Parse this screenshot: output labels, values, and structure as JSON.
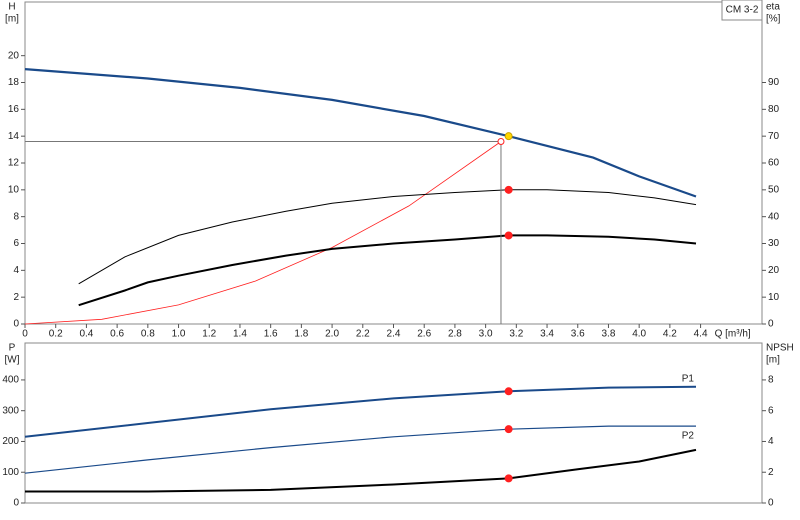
{
  "chart_data": [
    {
      "type": "line",
      "title": "CM 3-2",
      "ylabel": [
        "H",
        "[m]"
      ],
      "y2label": [
        "eta",
        "[%]"
      ],
      "xlabel": "Q [m³/h]",
      "xlim": [
        0,
        4.8
      ],
      "xticks": [
        0,
        0.2,
        0.4,
        0.6,
        0.8,
        {
          "value": 1,
          "label": "1.0"
        },
        1.2,
        1.4,
        1.6,
        1.8,
        {
          "value": 2,
          "label": "2.0"
        },
        2.2,
        2.4,
        2.6,
        2.8,
        {
          "value": 3,
          "label": "3.0"
        },
        3.2,
        3.4,
        3.6,
        3.8,
        {
          "value": 4,
          "label": "4.0"
        },
        4.2,
        4.4
      ],
      "ylim": [
        0,
        24
      ],
      "yticks": [
        0,
        2,
        4,
        6,
        8,
        10,
        12,
        14,
        16,
        18,
        20
      ],
      "y2lim": [
        0,
        120
      ],
      "y2ticks": [
        0,
        10,
        20,
        30,
        40,
        50,
        60,
        70,
        80,
        90
      ],
      "series": [
        {
          "color": "#1a4a8a",
          "width": 2.2,
          "x": [
            0,
            0.8,
            1.4,
            2.0,
            2.6,
            3.15,
            3.7,
            4.0,
            4.37
          ],
          "values": [
            19.0,
            18.3,
            17.6,
            16.7,
            15.5,
            14.0,
            12.4,
            11.0,
            9.5
          ]
        },
        {
          "color": "#ff2020",
          "width": 0.8,
          "x": [
            0,
            0.5,
            1.0,
            1.5,
            2.0,
            2.5,
            3.1
          ],
          "values": [
            0,
            0.35,
            1.42,
            3.2,
            5.7,
            8.8,
            13.6
          ]
        },
        {
          "color": "#000000",
          "width": 1,
          "axis": "y2",
          "x": [
            0.35,
            0.65,
            1.0,
            1.35,
            1.7,
            2.0,
            2.4,
            2.8,
            3.15,
            3.4,
            3.8,
            4.1,
            4.37
          ],
          "values": [
            15,
            25,
            33,
            38,
            42,
            45,
            47.5,
            49,
            50,
            50,
            49,
            47,
            44.5
          ]
        },
        {
          "color": "#000000",
          "width": 2,
          "axis": "y2",
          "x": [
            0.35,
            0.65,
            0.8,
            1.0,
            1.35,
            1.7,
            2.0,
            2.4,
            2.8,
            3.15,
            3.4,
            3.8,
            4.1,
            4.37
          ],
          "values": [
            7,
            12.5,
            15.5,
            18,
            22,
            25.5,
            28,
            30,
            31.5,
            33,
            33,
            32.5,
            31.5,
            30
          ]
        }
      ],
      "markers": [
        {
          "x": 3.1,
          "y": 13.6,
          "color": "#ff2020",
          "open": true,
          "guides": true
        },
        {
          "x": 3.15,
          "y": 14.0,
          "color": "#ffd700"
        },
        {
          "x": 3.15,
          "y": 50,
          "color": "#ff2020",
          "axis": "y2"
        },
        {
          "x": 3.15,
          "y": 33,
          "color": "#ff2020",
          "axis": "y2"
        }
      ]
    },
    {
      "type": "line",
      "ylabel": [
        "P",
        "[W]"
      ],
      "y2label": [
        "NPSH",
        "[m]"
      ],
      "xlim": [
        0,
        4.8
      ],
      "ylim": [
        0,
        520
      ],
      "yticks": [
        0,
        100,
        200,
        300,
        400
      ],
      "y2lim": [
        0,
        10.4
      ],
      "y2ticks": [
        0,
        2,
        4,
        6,
        8
      ],
      "series": [
        {
          "name": "P1",
          "label_position": "above",
          "color": "#1a4a8a",
          "width": 2,
          "x": [
            0,
            0.8,
            1.6,
            2.4,
            3.15,
            3.8,
            4.37
          ],
          "values": [
            215,
            260,
            305,
            340,
            363,
            375,
            378
          ]
        },
        {
          "name": "P2",
          "label_position": "below",
          "color": "#1a4a8a",
          "width": 1.2,
          "x": [
            0,
            0.8,
            1.6,
            2.4,
            3.15,
            3.8,
            4.37
          ],
          "values": [
            97,
            140,
            180,
            215,
            240,
            250,
            250
          ]
        },
        {
          "color": "#000000",
          "width": 2,
          "axis": "y2",
          "x": [
            0,
            0.8,
            1.6,
            2.4,
            3.15,
            3.6,
            4.0,
            4.37
          ],
          "values": [
            0.75,
            0.75,
            0.85,
            1.2,
            1.6,
            2.2,
            2.7,
            3.45
          ]
        }
      ],
      "markers": [
        {
          "x": 3.15,
          "y": 363,
          "color": "#ff2020"
        },
        {
          "x": 3.15,
          "y": 240,
          "color": "#ff2020"
        },
        {
          "x": 3.15,
          "y": 1.6,
          "color": "#ff2020",
          "axis": "y2"
        }
      ]
    }
  ]
}
